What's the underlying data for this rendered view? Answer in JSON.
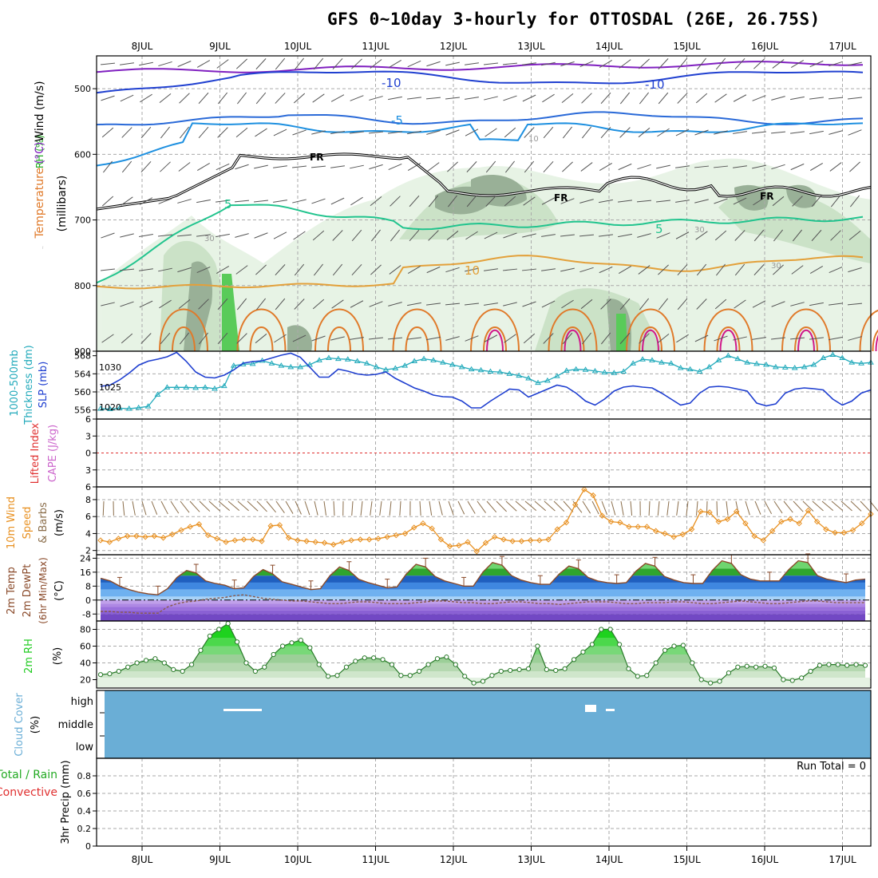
{
  "title": "GFS 0~10day 3-hourly for OTTOSDAL (26E, 26.75S)",
  "date_labels": [
    "8JUL",
    "9JUL",
    "10JUL",
    "11JUL",
    "12JUL",
    "13JUL",
    "14JUL",
    "15JUL",
    "16JUL",
    "17JUL"
  ],
  "colors": {
    "grid": "#aaaaaa",
    "cloud": "#6aaed6",
    "slp": "#1f3fd0",
    "thick": "#22aabb",
    "wind10": "#e89020",
    "rh": "#22cc22",
    "lifted": "#e03030",
    "cape": "#cc66cc"
  },
  "panels": {
    "upper": {
      "ylabel_wind": "Wind (m/s)",
      "ylabel_temp": "Temperature (°C)",
      "ylabel_rh": "RH (%)",
      "ylabel_mb": "(millibars)",
      "ytick_labels": [
        "500",
        "600",
        "700",
        "800",
        "900"
      ],
      "contour_labels": {
        "m10a": "-10",
        "m10b": "-10",
        "m5": "-5",
        "fr1": "FR",
        "fr2": "FR",
        "fr3": "FR",
        "p5a": "5",
        "p5b": "5",
        "p10": "10",
        "rh30a": "30",
        "rh30b": "30",
        "rh30c": "30",
        "rh10": "10"
      }
    },
    "slp": {
      "ylabel_thick": "1000-500mb Thickness (dm)",
      "ylabel_slp": "SLP (mb)",
      "left_ticks": [
        "568",
        "564",
        "560",
        "556"
      ],
      "right_ticks": [
        "1030",
        "1025",
        "1020"
      ],
      "thickness_dm": [
        556.3,
        556.2,
        556.4,
        556.3,
        556.5,
        556.8,
        559.4,
        561.0,
        561.0,
        561.0,
        560.9,
        561.0,
        560.7,
        561.3,
        565.8,
        566.1,
        566.2,
        566.9,
        566.3,
        565.8,
        565.5,
        565.5,
        566.0,
        567.0,
        567.5,
        567.3,
        567.2,
        566.8,
        566.3,
        565.5,
        564.9,
        565.2,
        565.8,
        566.8,
        567.3,
        567.0,
        566.5,
        566.0,
        565.5,
        565.0,
        564.8,
        564.5,
        564.4,
        564.0,
        563.6,
        563.0,
        562.0,
        562.5,
        563.5,
        564.7,
        565.0,
        564.9,
        564.6,
        564.3,
        564.2,
        564.5,
        566.3,
        567.2,
        567.0,
        566.5,
        566.3,
        565.3,
        565.0,
        564.5,
        565.5,
        567.0,
        568.0,
        567.3,
        566.5,
        566.2,
        566.0,
        565.5,
        565.4,
        565.3,
        565.5,
        566.0,
        567.5,
        568.2,
        567.5,
        566.5,
        566.3,
        566.5
      ],
      "slp_mb": [
        1025.2,
        1025.5,
        1026.8,
        1028.5,
        1030.5,
        1031.5,
        1032.0,
        1032.6,
        1033.7,
        1031.5,
        1028.8,
        1027.5,
        1027.3,
        1028.0,
        1029.3,
        1031.0,
        1031.4,
        1031.6,
        1032.3,
        1033.0,
        1033.5,
        1032.5,
        1030.0,
        1027.5,
        1027.5,
        1029.5,
        1029.0,
        1028.3,
        1028.0,
        1028.2,
        1028.8,
        1027.2,
        1026.0,
        1024.8,
        1024.0,
        1023.0,
        1022.6,
        1022.5,
        1021.5,
        1019.8,
        1019.8,
        1021.5,
        1023.0,
        1024.5,
        1024.3,
        1022.5,
        1023.5,
        1024.5,
        1025.5,
        1025.0,
        1023.5,
        1021.5,
        1020.5,
        1022.0,
        1024.0,
        1025.0,
        1025.3,
        1025.0,
        1024.8,
        1023.5,
        1022.0,
        1020.5,
        1021.0,
        1023.5,
        1025.0,
        1025.2,
        1025.0,
        1024.5,
        1024.0,
        1021.0,
        1020.3,
        1020.8,
        1023.5,
        1024.5,
        1024.8,
        1024.6,
        1024.3,
        1022.0,
        1020.5,
        1021.5,
        1023.5,
        1024.3
      ]
    },
    "lifted": {
      "ylabel_lifted": "Lifted Index",
      "ylabel_cape": "CAPE (J/kg)",
      "ticks": [
        "6",
        "3",
        "0",
        "3",
        "6"
      ]
    },
    "wind10": {
      "ylabel": "10m Wind Speed & Barbs (m/s)",
      "ticks": [
        "8",
        "6",
        "4",
        "2"
      ],
      "speed_ms": [
        3.2,
        3.0,
        3.4,
        3.7,
        3.7,
        3.6,
        3.7,
        3.5,
        3.9,
        4.4,
        4.8,
        5.1,
        3.8,
        3.4,
        3.0,
        3.2,
        3.3,
        3.3,
        3.1,
        4.9,
        5.0,
        3.5,
        3.2,
        3.1,
        3.0,
        2.9,
        2.7,
        3.0,
        3.2,
        3.3,
        3.3,
        3.4,
        3.6,
        3.8,
        4.0,
        4.7,
        5.2,
        4.6,
        3.3,
        2.5,
        2.6,
        3.0,
        1.9,
        2.9,
        3.6,
        3.3,
        3.1,
        3.1,
        3.2,
        3.2,
        3.3,
        4.5,
        5.3,
        7.4,
        9.2,
        8.5,
        6.1,
        5.4,
        5.3,
        4.8,
        4.8,
        4.8,
        4.3,
        4.0,
        3.6,
        3.9,
        4.5,
        6.6,
        6.5,
        5.4,
        5.7,
        6.6,
        5.2,
        3.7,
        3.2,
        4.3,
        5.4,
        5.7,
        5.2,
        6.7,
        5.4,
        4.5,
        4.1,
        4.1,
        4.4,
        5.2,
        6.3
      ]
    },
    "temp2m": {
      "ylabel": "2m Temp 2m DewPt (6hr Min/Max) (°C)",
      "ticks": [
        "24",
        "16",
        "8",
        "0",
        "-8"
      ],
      "temp_c": [
        12.5,
        11.0,
        8.0,
        6.0,
        4.5,
        3.5,
        3.0,
        6.5,
        13.0,
        17.0,
        15.5,
        11.0,
        9.5,
        8.5,
        6.5,
        7.0,
        13.5,
        17.5,
        15.0,
        10.5,
        9.0,
        7.5,
        6.0,
        6.5,
        14.0,
        19.0,
        17.0,
        12.0,
        10.0,
        8.5,
        7.0,
        7.5,
        15.0,
        20.5,
        19.0,
        13.5,
        11.0,
        9.5,
        8.0,
        8.0,
        16.0,
        21.5,
        20.0,
        14.0,
        11.5,
        10.0,
        9.0,
        9.0,
        15.0,
        19.5,
        18.0,
        13.0,
        11.0,
        10.0,
        9.5,
        10.0,
        16.5,
        21.0,
        19.5,
        13.5,
        11.5,
        10.0,
        9.5,
        9.5,
        17.0,
        22.5,
        21.0,
        14.5,
        12.0,
        11.0,
        11.0,
        11.0,
        17.5,
        22.5,
        21.5,
        14.0,
        12.0,
        11.0,
        10.0,
        11.5,
        12.0
      ],
      "dewpt_c": [
        -6.5,
        -6.5,
        -7.0,
        -7.0,
        -7.5,
        -7.5,
        -7.5,
        -4.0,
        -2.0,
        -1.0,
        -0.5,
        0.5,
        1.0,
        1.5,
        2.5,
        3.0,
        2.0,
        1.0,
        0.5,
        0.0,
        -0.5,
        -0.5,
        -1.0,
        -1.5,
        -2.0,
        -2.0,
        -1.5,
        -1.0,
        -1.0,
        -1.5,
        -2.0,
        -2.0,
        -2.0,
        -1.5,
        -1.0,
        -0.5,
        -0.5,
        -1.0,
        -1.5,
        -1.5,
        -2.0,
        -2.0,
        -1.5,
        -1.0,
        -1.0,
        -1.5,
        -2.0,
        -2.0,
        -2.5,
        -2.0,
        -1.5,
        -1.0,
        -1.0,
        -1.0,
        -1.5,
        -2.0,
        -2.0,
        -1.5,
        -1.5,
        -1.5,
        -1.0,
        -1.0,
        -1.5,
        -2.0,
        -2.0,
        -1.5,
        -1.0,
        -0.5,
        -1.0,
        -1.5,
        -2.0,
        -2.0,
        -1.5,
        -1.0,
        -0.5,
        -0.5,
        -1.0,
        -1.5,
        -1.5,
        -1.5,
        -1.5
      ]
    },
    "rh2m": {
      "ylabel": "2m RH (%)",
      "ticks": [
        "80",
        "60",
        "40",
        "20"
      ],
      "rh_pct": [
        26,
        27,
        30,
        35,
        40,
        43,
        45,
        40,
        32,
        30,
        38,
        55,
        72,
        80,
        87,
        65,
        40,
        30,
        35,
        50,
        60,
        64,
        67,
        58,
        38,
        24,
        25,
        35,
        42,
        46,
        46,
        44,
        38,
        25,
        25,
        30,
        38,
        45,
        47,
        38,
        24,
        16,
        18,
        25,
        30,
        31,
        32,
        33,
        60,
        32,
        31,
        33,
        44,
        53,
        62,
        80,
        80,
        62,
        33,
        24,
        25,
        40,
        55,
        60,
        61,
        40,
        20,
        16,
        18,
        28,
        35,
        36,
        35,
        36,
        34,
        20,
        19,
        22,
        30,
        37,
        38,
        38,
        37,
        38,
        37
      ]
    },
    "cloud": {
      "ylabel": "Cloud Cover (%)",
      "levels": [
        "high",
        "middle",
        "low"
      ]
    },
    "precip": {
      "ylabel_total": "Total / Rain",
      "ylabel_conv": "Convective",
      "ylabel": "3hr Precip (mm)",
      "ticks": [
        "0.8",
        "0.6",
        "0.4",
        "0.2",
        "0"
      ],
      "run_total": "Run Total = 0"
    }
  },
  "chart_data": [
    {
      "type": "line",
      "title": "GFS 0~10day 3-hourly for OTTOSDAL (26E, 26.75S)",
      "panel": "upper-air wind / temperature / RH cross-section",
      "ylabel": "millibars",
      "ylim": [
        450,
        900
      ],
      "x_range": [
        "7.5JUL",
        "17.3JUL"
      ],
      "contour_levels": [
        "-10",
        "-5",
        "FR",
        "5",
        "10"
      ],
      "grid": true
    },
    {
      "type": "line",
      "panel": "SLP and 1000-500mb thickness",
      "series": [
        {
          "name": "1000-500mb Thickness (dm)",
          "axis": "left",
          "ylim": [
            554,
            569
          ]
        },
        {
          "name": "SLP (mb)",
          "axis": "right",
          "ylim": [
            1017,
            1034
          ]
        }
      ]
    },
    {
      "type": "line",
      "panel": "Lifted Index / CAPE",
      "ylim": [
        -6,
        6
      ],
      "values": "none (zero line only)"
    },
    {
      "type": "line",
      "panel": "10m Wind Speed & Barbs",
      "ylabel": "m/s",
      "ylim": [
        1.5,
        9.5
      ]
    },
    {
      "type": "area",
      "panel": "2m Temp / 2m DewPt",
      "ylabel": "°C",
      "ylim": [
        -12,
        26
      ]
    },
    {
      "type": "area",
      "panel": "2m RH",
      "ylabel": "%",
      "ylim": [
        10,
        90
      ]
    },
    {
      "type": "heatmap",
      "panel": "Cloud Cover",
      "levels": [
        "high",
        "middle",
        "low"
      ],
      "values": "full cover all levels"
    },
    {
      "type": "bar",
      "panel": "3hr Precip",
      "ylabel": "mm",
      "ylim": [
        0,
        1.0
      ],
      "values": [],
      "run_total": 0
    }
  ]
}
